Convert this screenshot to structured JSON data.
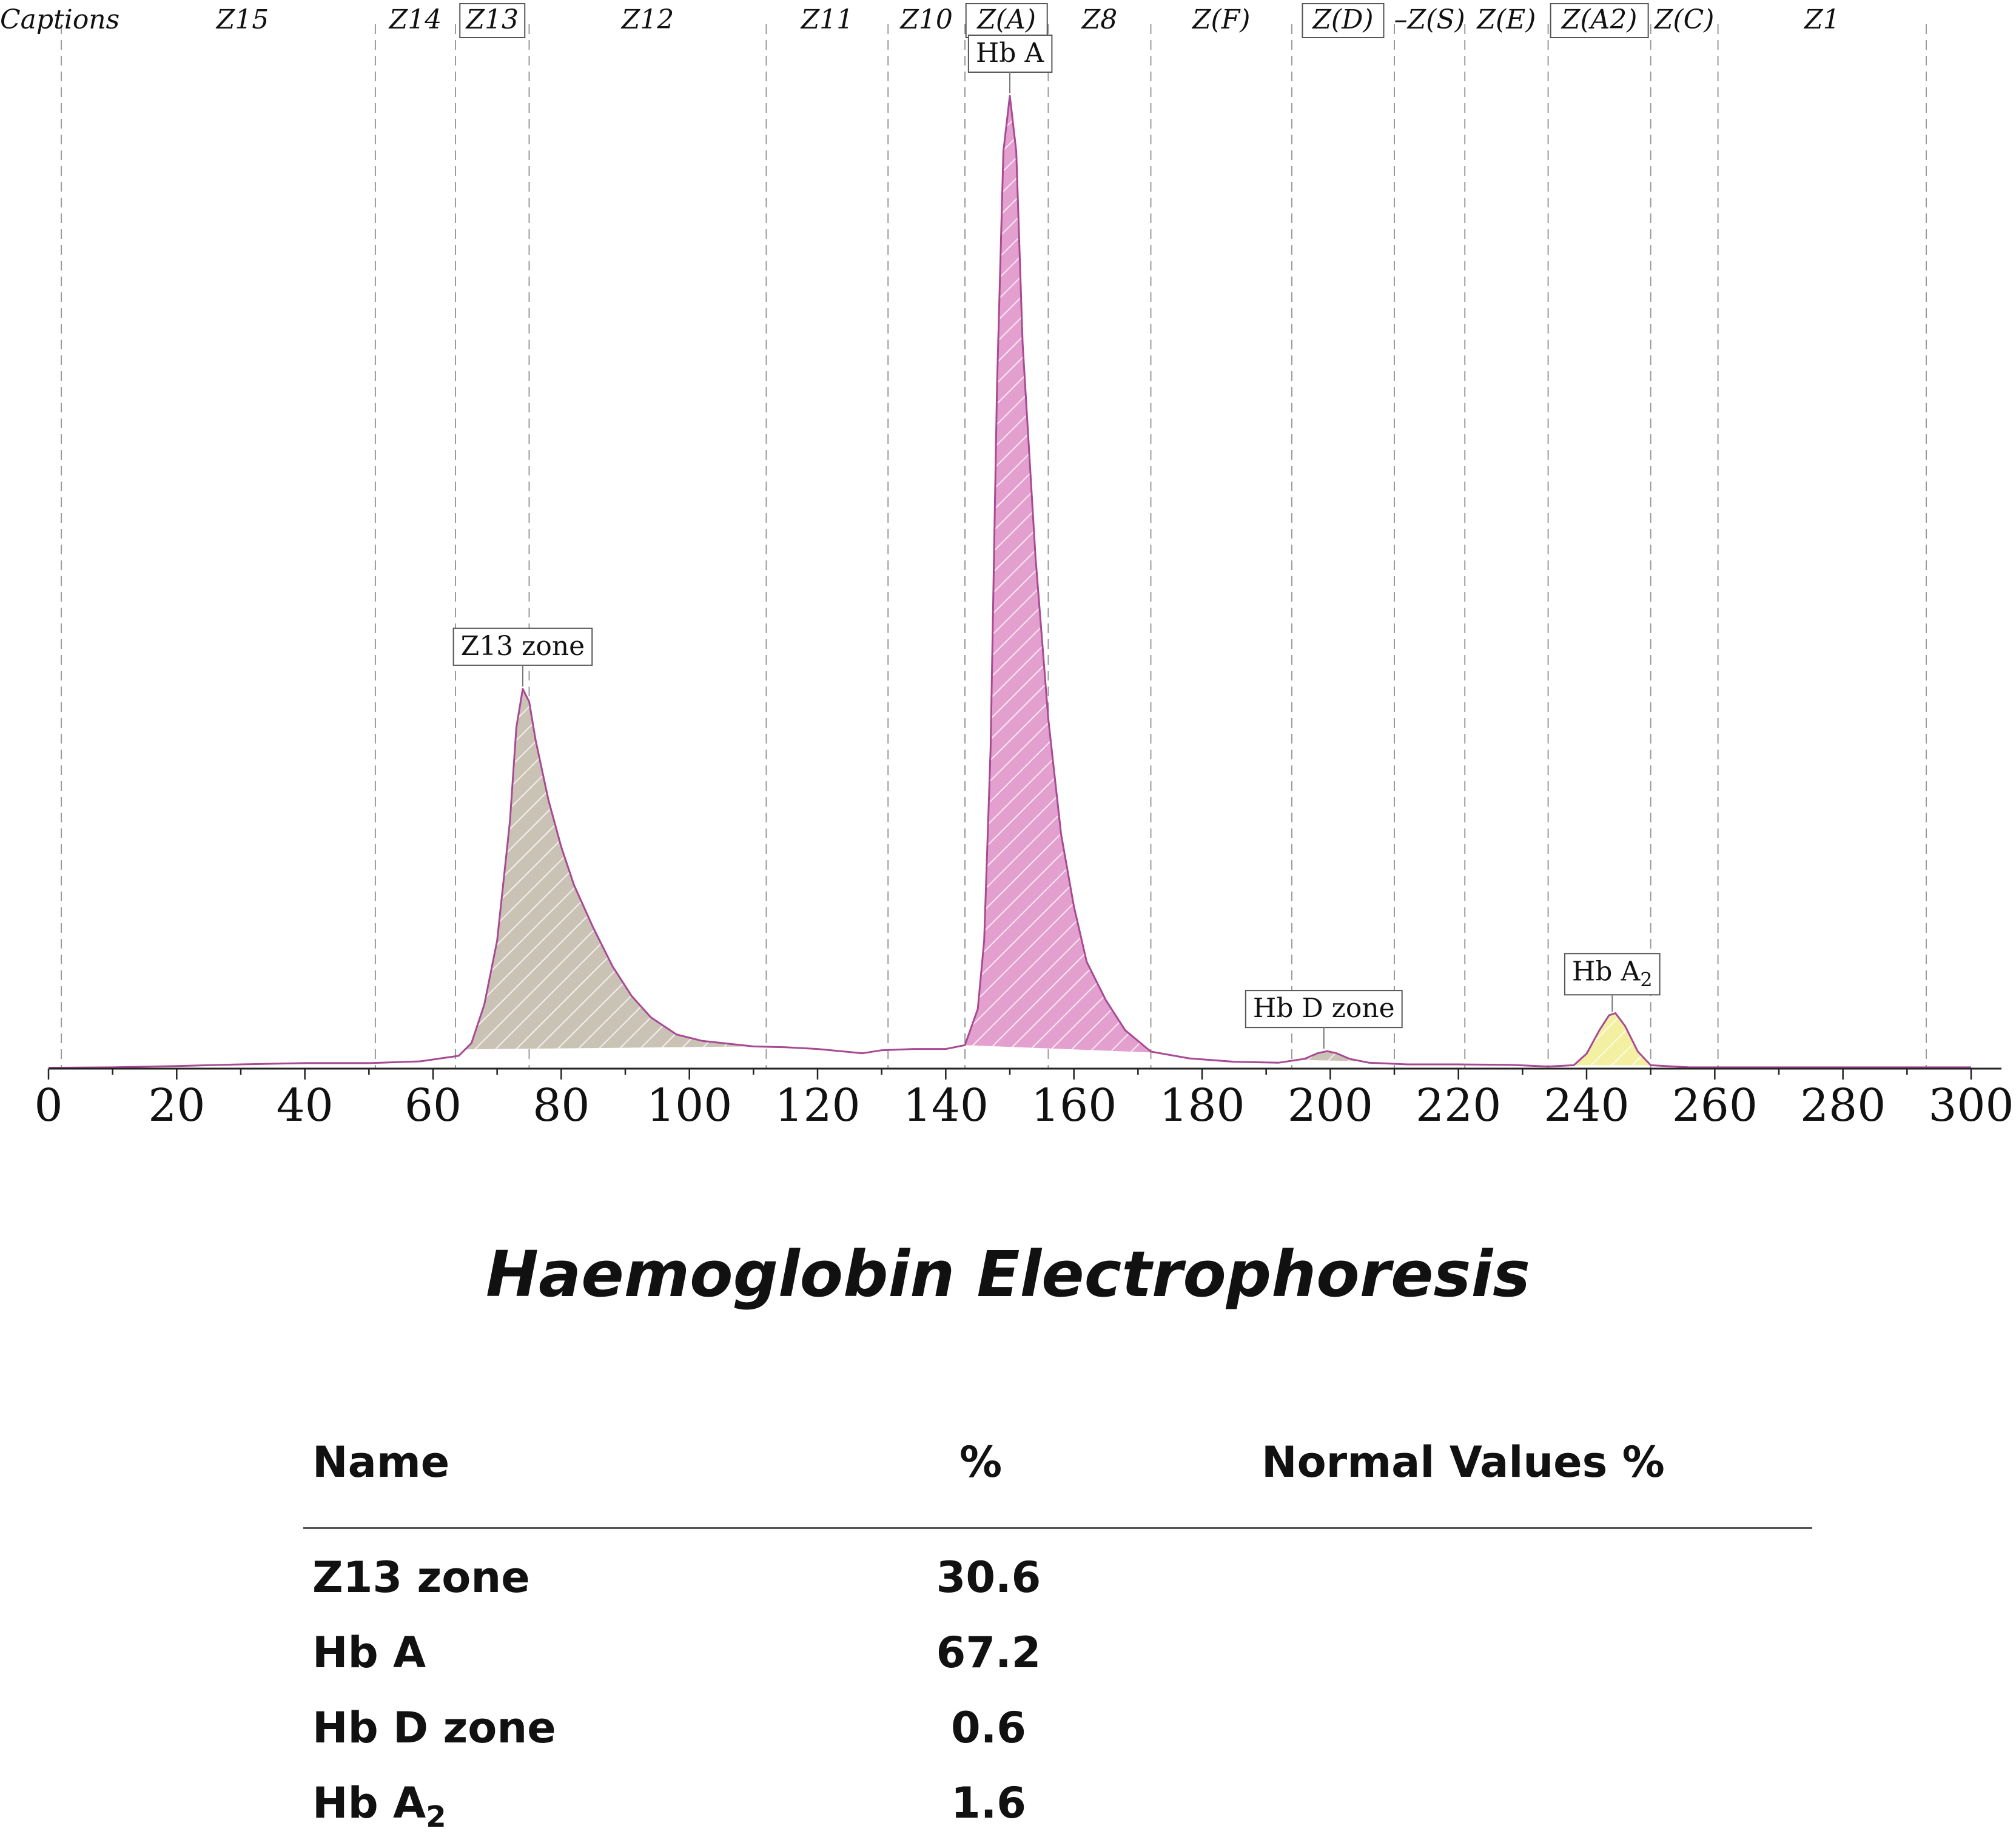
{
  "chart_data": {
    "type": "area",
    "title": "Haemoglobin Electrophoresis",
    "xlim": [
      0,
      300
    ],
    "x_ticks": [
      0,
      20,
      40,
      60,
      80,
      100,
      120,
      140,
      160,
      180,
      200,
      220,
      240,
      260,
      280,
      300
    ],
    "grid": false,
    "captions_label": "Captions",
    "zones": [
      {
        "label": "Z15",
        "boxed": false
      },
      {
        "label": "Z14",
        "boxed": false
      },
      {
        "label": "Z13",
        "boxed": true
      },
      {
        "label": "Z12",
        "boxed": false
      },
      {
        "label": "Z11",
        "boxed": false
      },
      {
        "label": "Z10",
        "boxed": false
      },
      {
        "label": "Z(A)",
        "boxed": true
      },
      {
        "label": "Z8",
        "boxed": false
      },
      {
        "label": "Z(F)",
        "boxed": false
      },
      {
        "label": "Z(D)",
        "boxed": true
      },
      {
        "label": "–Z(S)",
        "boxed": false
      },
      {
        "label": "Z(E)",
        "boxed": false
      },
      {
        "label": "Z(A2)",
        "boxed": true
      },
      {
        "label": "Z(C)",
        "boxed": false
      },
      {
        "label": "Z1",
        "boxed": false
      }
    ],
    "zone_boundaries": [
      2,
      51,
      63.5,
      75,
      112,
      131,
      143,
      156,
      172,
      194,
      210,
      221,
      234,
      250,
      260.5,
      293
    ],
    "peaks": [
      {
        "label": "Z13 zone",
        "x": 74,
        "percent": 30.6,
        "fill": "#cbc2b6"
      },
      {
        "label": "Hb A",
        "x": 150,
        "percent": 67.2,
        "fill": "#e3a0cf"
      },
      {
        "label": "Hb D zone",
        "x": 199.5,
        "percent": 0.6,
        "fill": "#cbc2b6"
      },
      {
        "label": "Hb A2",
        "label_main": "Hb A",
        "label_sub": "2",
        "x": 244,
        "percent": 1.6,
        "fill": "#f3f0a2"
      }
    ],
    "trace_color": "#a84a93",
    "trace": [
      [
        0,
        0.2
      ],
      [
        10,
        0.3
      ],
      [
        20,
        0.6
      ],
      [
        30,
        1.0
      ],
      [
        40,
        1.3
      ],
      [
        50,
        1.3
      ],
      [
        58,
        1.7
      ],
      [
        64,
        3.0
      ],
      [
        66,
        6
      ],
      [
        68,
        15
      ],
      [
        70,
        30
      ],
      [
        72,
        58
      ],
      [
        73,
        80
      ],
      [
        74,
        89
      ],
      [
        75,
        86
      ],
      [
        76,
        77
      ],
      [
        78,
        63
      ],
      [
        80,
        52
      ],
      [
        82,
        43
      ],
      [
        85,
        33
      ],
      [
        88,
        24
      ],
      [
        91,
        17
      ],
      [
        94,
        12
      ],
      [
        98,
        8
      ],
      [
        102,
        6.5
      ],
      [
        110,
        5.2
      ],
      [
        115,
        5
      ],
      [
        120,
        4.6
      ],
      [
        127,
        3.6
      ],
      [
        130,
        4.3
      ],
      [
        135,
        4.6
      ],
      [
        140,
        4.6
      ],
      [
        143,
        5.5
      ],
      [
        145,
        14
      ],
      [
        146,
        30
      ],
      [
        147,
        75
      ],
      [
        148,
        160
      ],
      [
        149,
        215
      ],
      [
        150,
        228
      ],
      [
        151,
        215
      ],
      [
        152,
        170
      ],
      [
        154,
        120
      ],
      [
        156,
        82
      ],
      [
        158,
        55
      ],
      [
        160,
        38
      ],
      [
        162,
        25
      ],
      [
        165,
        16
      ],
      [
        168,
        9
      ],
      [
        172,
        4
      ],
      [
        178,
        2.4
      ],
      [
        185,
        1.6
      ],
      [
        192,
        1.4
      ],
      [
        196,
        2.3
      ],
      [
        198,
        3.6
      ],
      [
        199.5,
        4.1
      ],
      [
        201,
        3.6
      ],
      [
        203,
        2.3
      ],
      [
        206,
        1.4
      ],
      [
        212,
        1.0
      ],
      [
        220,
        1.0
      ],
      [
        228,
        0.9
      ],
      [
        234,
        0.5
      ],
      [
        238,
        0.8
      ],
      [
        240,
        3.5
      ],
      [
        242,
        9
      ],
      [
        243.5,
        12.5
      ],
      [
        244.5,
        13
      ],
      [
        246,
        10
      ],
      [
        248,
        4
      ],
      [
        250,
        0.8
      ],
      [
        256,
        0.3
      ],
      [
        270,
        0.3
      ],
      [
        285,
        0.3
      ],
      [
        300,
        0.3
      ]
    ]
  },
  "results_table": {
    "headers": {
      "name": "Name",
      "percent": "%",
      "normal": "Normal Values %"
    },
    "rows": [
      {
        "name": "Z13 zone",
        "percent": "30.6",
        "normal": ""
      },
      {
        "name": "Hb A",
        "percent": "67.2",
        "normal": ""
      },
      {
        "name": "Hb D zone",
        "percent": "0.6",
        "normal": ""
      },
      {
        "name": "Hb A",
        "name_sub": "2",
        "percent": "1.6",
        "normal": ""
      }
    ]
  }
}
